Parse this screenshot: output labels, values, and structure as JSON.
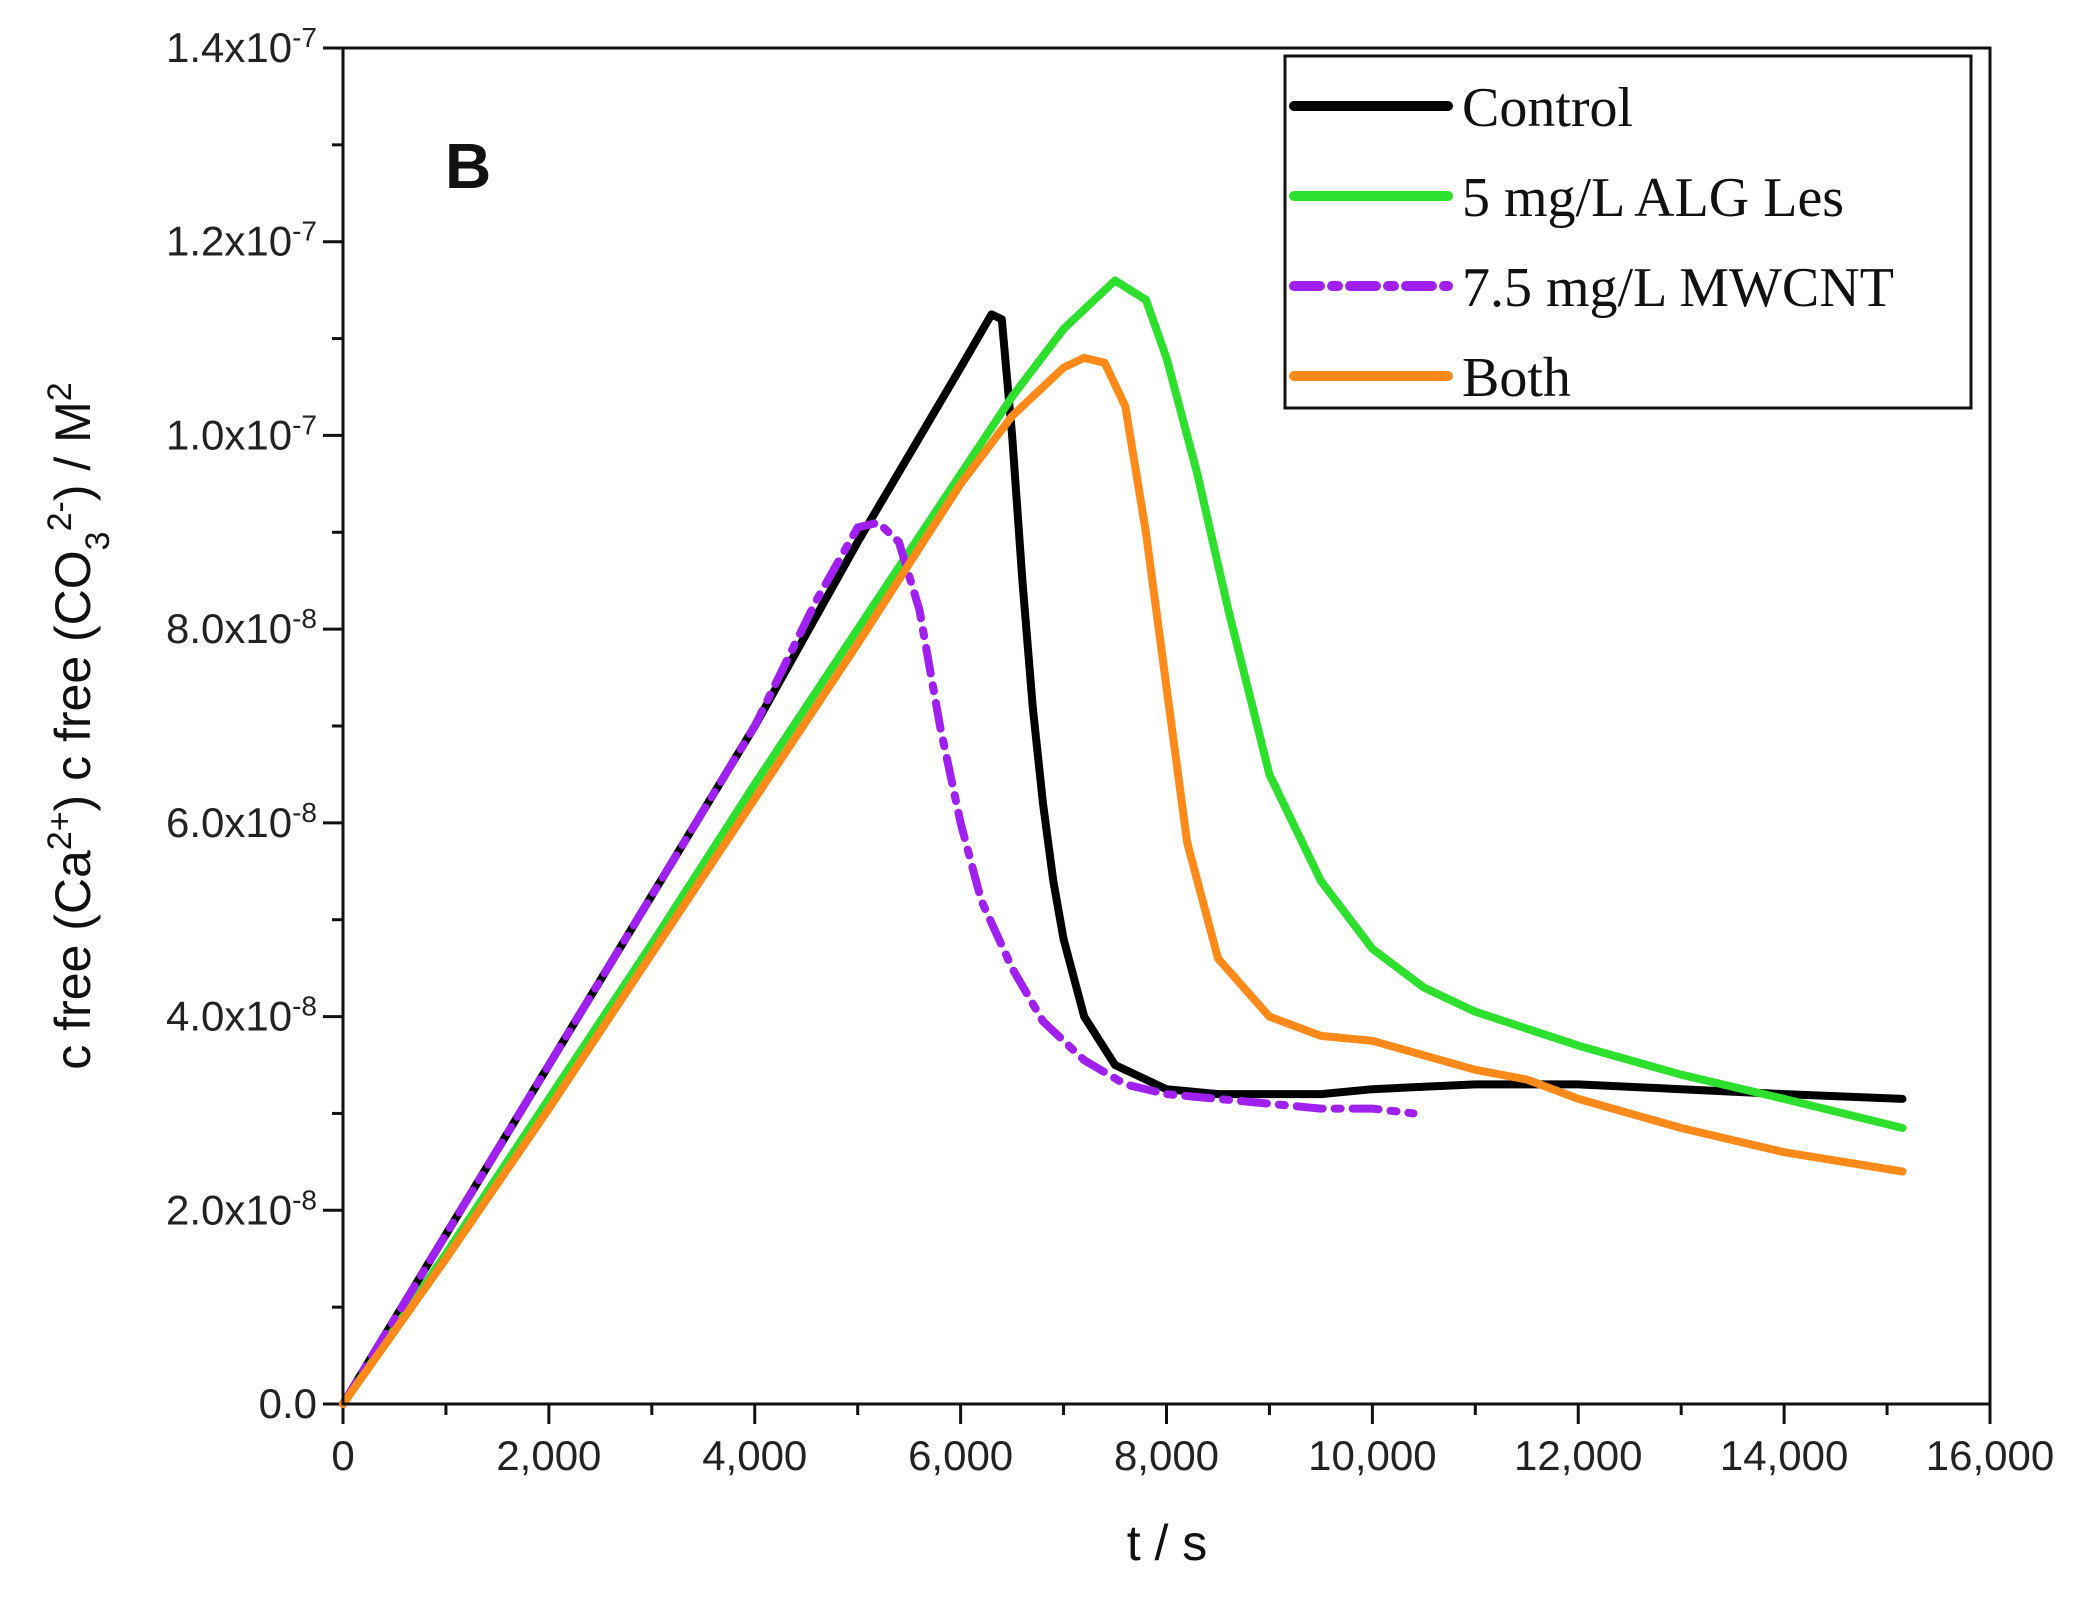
{
  "chart_data": {
    "type": "line",
    "panel_label": "B",
    "xlabel": "t / s",
    "ylabel": {
      "parts": [
        "c free (Ca",
        "2+",
        ") c free (CO",
        "3",
        "2-",
        ") / M",
        "2"
      ]
    },
    "xlim": [
      0,
      16000
    ],
    "ylim": [
      0,
      1.4e-07
    ],
    "x_ticks": [
      0,
      2000,
      4000,
      6000,
      8000,
      10000,
      12000,
      14000,
      16000
    ],
    "x_tick_labels": [
      "0",
      "2,000",
      "4,000",
      "6,000",
      "8,000",
      "10,000",
      "12,000",
      "14,000",
      "16,000"
    ],
    "y_ticks": [
      0,
      2e-08,
      4e-08,
      6e-08,
      8e-08,
      1e-07,
      1.2e-07,
      1.4e-07
    ],
    "y_tick_labels": [
      {
        "mantissa": "0.0",
        "exp": ""
      },
      {
        "mantissa": "2.0x10",
        "exp": "-8"
      },
      {
        "mantissa": "4.0x10",
        "exp": "-8"
      },
      {
        "mantissa": "6.0x10",
        "exp": "-8"
      },
      {
        "mantissa": "8.0x10",
        "exp": "-8"
      },
      {
        "mantissa": "1.0x10",
        "exp": "-7"
      },
      {
        "mantissa": "1.2x10",
        "exp": "-7"
      },
      {
        "mantissa": "1.4x10",
        "exp": "-7"
      }
    ],
    "grid": false,
    "legend_position": "top-right",
    "series": [
      {
        "name": "Control",
        "color": "#000000",
        "dash": "solid",
        "x": [
          0,
          1000,
          2000,
          3000,
          4000,
          5000,
          5500,
          6000,
          6300,
          6400,
          6500,
          6600,
          6700,
          6800,
          6900,
          7000,
          7200,
          7500,
          8000,
          8500,
          9000,
          9500,
          10000,
          11000,
          12000,
          13000,
          14000,
          15150
        ],
        "y": [
          0,
          1.75e-08,
          3.5e-08,
          5.25e-08,
          7e-08,
          8.9e-08,
          9.8e-08,
          1.07e-07,
          1.125e-07,
          1.12e-07,
          1e-07,
          8.5e-08,
          7.2e-08,
          6.2e-08,
          5.4e-08,
          4.8e-08,
          4e-08,
          3.5e-08,
          3.25e-08,
          3.2e-08,
          3.2e-08,
          3.2e-08,
          3.25e-08,
          3.3e-08,
          3.3e-08,
          3.25e-08,
          3.2e-08,
          3.15e-08
        ]
      },
      {
        "name": "5 mg/L ALG Les",
        "color": "#2de02d",
        "dash": "solid",
        "x": [
          0,
          1000,
          2000,
          3000,
          4000,
          5000,
          6000,
          6500,
          7000,
          7500,
          7800,
          8000,
          8300,
          8600,
          9000,
          9500,
          10000,
          10500,
          11000,
          12000,
          13000,
          14000,
          15150
        ],
        "y": [
          0,
          1.55e-08,
          3.15e-08,
          4.75e-08,
          6.4e-08,
          8e-08,
          9.6e-08,
          1.04e-07,
          1.11e-07,
          1.16e-07,
          1.14e-07,
          1.08e-07,
          9.6e-08,
          8.2e-08,
          6.5e-08,
          5.4e-08,
          4.7e-08,
          4.3e-08,
          4.05e-08,
          3.7e-08,
          3.4e-08,
          3.15e-08,
          2.85e-08
        ]
      },
      {
        "name": "7.5 mg/L MWCNT",
        "color": "#a020f0",
        "dash": "dashdot",
        "x": [
          0,
          1000,
          2000,
          3000,
          4000,
          4600,
          5000,
          5200,
          5400,
          5600,
          5800,
          6000,
          6200,
          6500,
          6800,
          7200,
          7600,
          8000,
          8500,
          9000,
          9500,
          10000,
          10400
        ],
        "y": [
          0,
          1.75e-08,
          3.5e-08,
          5.25e-08,
          7e-08,
          8.3e-08,
          9.05e-08,
          9.1e-08,
          8.9e-08,
          8.2e-08,
          7e-08,
          6e-08,
          5.2e-08,
          4.5e-08,
          3.95e-08,
          3.55e-08,
          3.3e-08,
          3.2e-08,
          3.15e-08,
          3.1e-08,
          3.05e-08,
          3.05e-08,
          3e-08
        ]
      },
      {
        "name": "Both",
        "color": "#ff8a1a",
        "dash": "solid",
        "x": [
          0,
          1000,
          2000,
          3000,
          4000,
          5000,
          6000,
          6500,
          7000,
          7200,
          7400,
          7600,
          7800,
          8000,
          8200,
          8500,
          9000,
          9500,
          10000,
          10500,
          11000,
          11500,
          12000,
          13000,
          14000,
          15150
        ],
        "y": [
          0,
          1.5e-08,
          3.05e-08,
          4.65e-08,
          6.25e-08,
          7.85e-08,
          9.5e-08,
          1.02e-07,
          1.07e-07,
          1.08e-07,
          1.075e-07,
          1.03e-07,
          9e-08,
          7.4e-08,
          5.8e-08,
          4.6e-08,
          4e-08,
          3.8e-08,
          3.75e-08,
          3.6e-08,
          3.45e-08,
          3.35e-08,
          3.15e-08,
          2.85e-08,
          2.6e-08,
          2.4e-08
        ]
      }
    ]
  }
}
